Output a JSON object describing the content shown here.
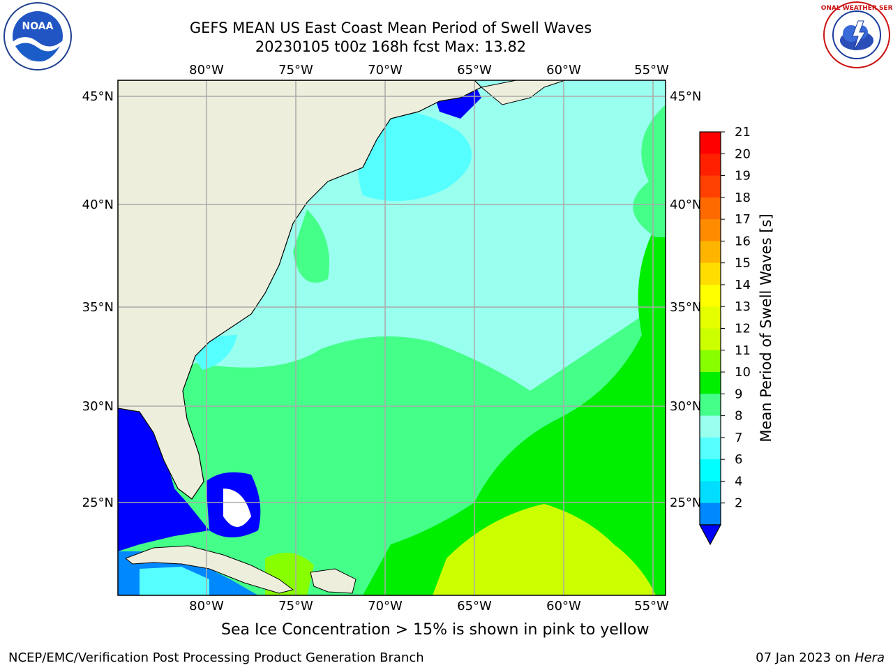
{
  "header": {
    "title": "GEFS MEAN US East Coast Mean Period of Swell Waves",
    "subtitle": "20230105 t00z 168h fcst   Max: 13.82"
  },
  "map": {
    "lon_labels": [
      "80°W",
      "75°W",
      "70°W",
      "65°W",
      "60°W",
      "55°W"
    ],
    "lat_labels": [
      "45°N",
      "40°N",
      "35°N",
      "30°N",
      "25°N"
    ],
    "colors": {
      "land": "#eeeedd",
      "ocean_low": "#0000ff",
      "ocean_mid": "#44ff88",
      "ocean_high": "#ccff00",
      "grid": "#aaaaaa"
    }
  },
  "colorbar": {
    "label": "Mean Period of Swell Waves [s]",
    "ticks": [
      "21",
      "20",
      "19",
      "18",
      "17",
      "16",
      "15",
      "14",
      "13",
      "12",
      "11",
      "10",
      "9",
      "8",
      "7",
      "6",
      "4",
      "2"
    ],
    "colors": [
      "#ff0000",
      "#ff2000",
      "#ff4000",
      "#ff6a00",
      "#ff8c00",
      "#ffb400",
      "#ffdd00",
      "#ffff00",
      "#e6ff00",
      "#ccff00",
      "#88ff00",
      "#00ee00",
      "#44ff88",
      "#99ffee",
      "#55ffff",
      "#00ffff",
      "#00ddff",
      "#0088ff",
      "#0000ff"
    ]
  },
  "note": "Sea Ice Concentration > 15% is shown in pink to yellow",
  "footer": {
    "left": "NCEP/EMC/Verification Post Processing Product Generation Branch",
    "date": "07 Jan 2023 on",
    "host": "Hera"
  },
  "logos": {
    "noaa": "NOAA",
    "nws": "NATIONAL WEATHER SERVICE"
  }
}
